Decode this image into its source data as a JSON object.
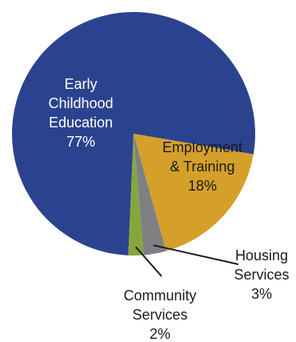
{
  "chart_data": {
    "type": "pie",
    "title": "",
    "slices": [
      {
        "lines": [
          "Early",
          "Childhood",
          "Education",
          "77%"
        ],
        "value": 77,
        "color": "#2b438f"
      },
      {
        "lines": [
          "Employment",
          "& Training",
          "18%"
        ],
        "value": 18,
        "color": "#d4a02a"
      },
      {
        "lines": [
          "Housing",
          "Services",
          "3%"
        ],
        "value": 3,
        "color": "#7e8083"
      },
      {
        "lines": [
          "Community",
          "Services",
          "2%"
        ],
        "value": 2,
        "color": "#86a63d"
      }
    ]
  }
}
